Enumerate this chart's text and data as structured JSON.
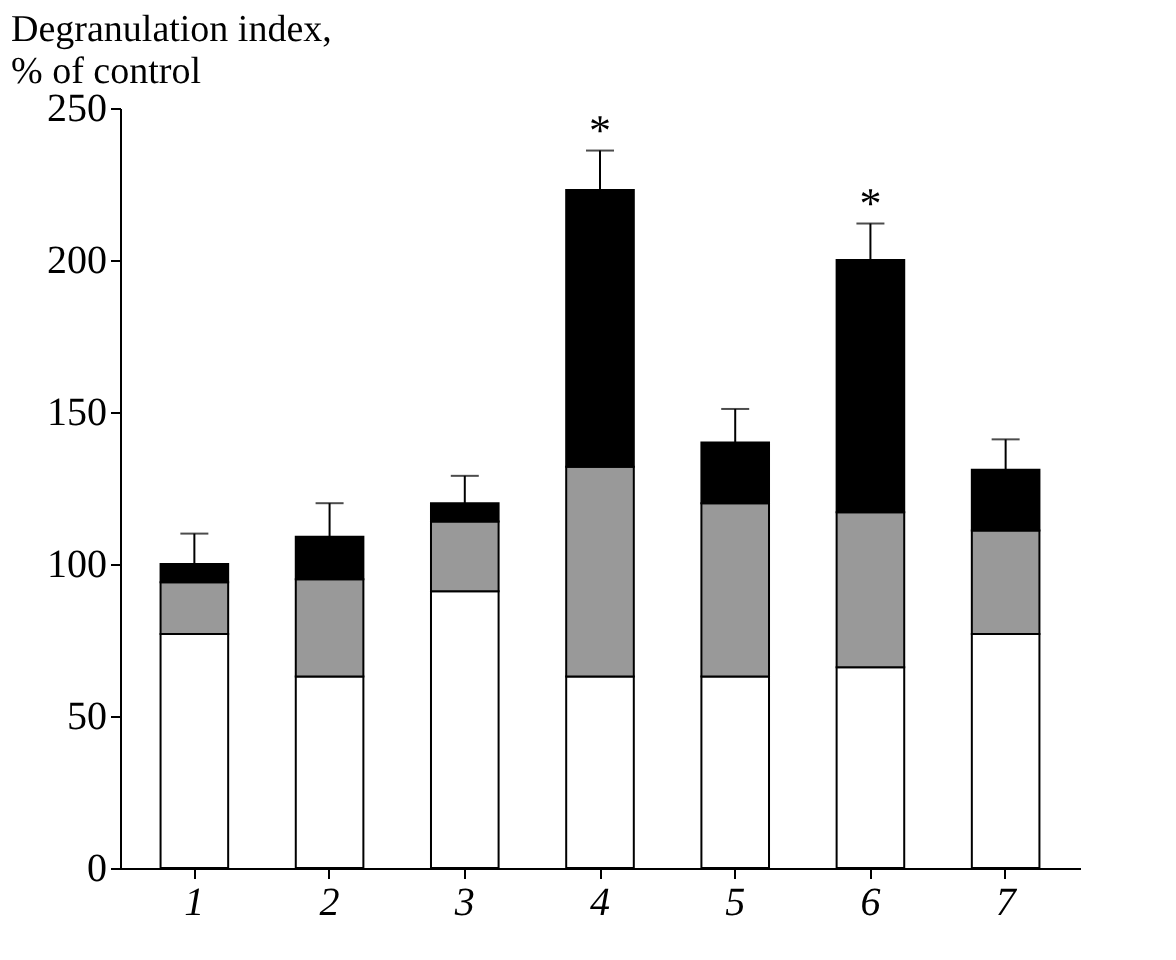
{
  "chart_data": {
    "type": "bar",
    "stacked": true,
    "ylabel": "Degranulation index,\n% of control",
    "categories": [
      "1",
      "2",
      "3",
      "4",
      "5",
      "6",
      "7"
    ],
    "series": [
      {
        "color": "#ffffff",
        "values": [
          77,
          63,
          91,
          63,
          63,
          66,
          77
        ]
      },
      {
        "color": "#999999",
        "values": [
          17,
          32,
          23,
          69,
          57,
          51,
          34
        ]
      },
      {
        "color": "#000000",
        "values": [
          6,
          14,
          6,
          91,
          20,
          83,
          20
        ],
        "errors": [
          10,
          11,
          9,
          13,
          11,
          12,
          10
        ]
      }
    ],
    "ylim": [
      0,
      250
    ],
    "yticks": [
      0,
      50,
      100,
      150,
      200,
      250
    ],
    "grid": false,
    "annotations": [
      {
        "text": "*",
        "x": "4",
        "y": 236
      },
      {
        "text": "*",
        "x": "6",
        "y": 212
      }
    ]
  }
}
